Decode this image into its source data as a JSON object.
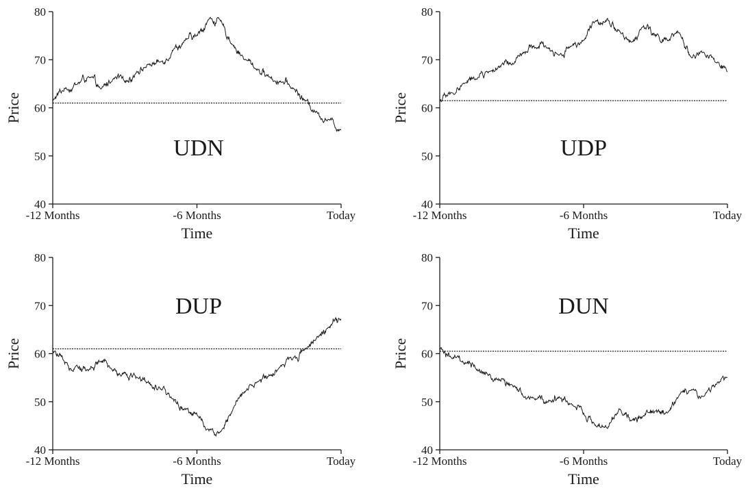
{
  "chart_data": [
    {
      "type": "line",
      "label": "UDN",
      "xlabel": "Time",
      "ylabel": "Price",
      "ylim": [
        40,
        80
      ],
      "yticks": [
        40,
        50,
        60,
        70,
        80
      ],
      "xticks": [
        {
          "value": -12,
          "label": "-12 Months"
        },
        {
          "value": -6,
          "label": "-6 Months"
        },
        {
          "value": 0,
          "label": "Today"
        }
      ],
      "xlim": [
        -12,
        0
      ],
      "reference_price": 61,
      "x": [
        -12,
        -11.5,
        -11,
        -10.5,
        -10,
        -9.5,
        -9,
        -8.5,
        -8,
        -7.5,
        -7,
        -6.5,
        -6,
        -5.5,
        -5,
        -4.5,
        -4,
        -3.5,
        -3,
        -2.5,
        -2,
        -1.5,
        -1,
        -0.5,
        0
      ],
      "y": [
        61.5,
        64.0,
        65.0,
        66.5,
        63.8,
        66.0,
        65.5,
        67.5,
        69.0,
        69.5,
        72.0,
        74.0,
        75.0,
        78.5,
        78.0,
        73.0,
        70.0,
        68.0,
        66.5,
        65.5,
        64.0,
        61.5,
        59.0,
        57.5,
        55.5
      ]
    },
    {
      "type": "line",
      "label": "UDP",
      "xlabel": "Time",
      "ylabel": "Price",
      "ylim": [
        40,
        80
      ],
      "yticks": [
        40,
        50,
        60,
        70,
        80
      ],
      "xticks": [
        {
          "value": -12,
          "label": "-12 Months"
        },
        {
          "value": -6,
          "label": "-6 Months"
        },
        {
          "value": 0,
          "label": "Today"
        }
      ],
      "xlim": [
        -12,
        0
      ],
      "reference_price": 61.5,
      "x": [
        -12,
        -11.5,
        -11,
        -10.5,
        -10,
        -9.5,
        -9,
        -8.5,
        -8,
        -7.5,
        -7,
        -6.5,
        -6,
        -5.5,
        -5,
        -4.5,
        -4,
        -3.5,
        -3,
        -2.5,
        -2,
        -1.5,
        -1,
        -0.5,
        0
      ],
      "y": [
        61.5,
        63.0,
        65.0,
        66.0,
        67.5,
        68.5,
        69.0,
        71.5,
        72.5,
        72.5,
        71.0,
        73.0,
        74.0,
        78.0,
        78.5,
        76.0,
        73.5,
        77.0,
        75.0,
        74.0,
        75.5,
        70.5,
        71.5,
        69.5,
        67.5
      ]
    },
    {
      "type": "line",
      "label": "DUP",
      "xlabel": "Time",
      "ylabel": "Price",
      "ylim": [
        40,
        80
      ],
      "yticks": [
        40,
        50,
        60,
        70,
        80
      ],
      "xticks": [
        {
          "value": -12,
          "label": "-12 Months"
        },
        {
          "value": -6,
          "label": "-6 Months"
        },
        {
          "value": 0,
          "label": "Today"
        }
      ],
      "xlim": [
        -12,
        0
      ],
      "reference_price": 61,
      "x": [
        -12,
        -11.5,
        -11,
        -10.5,
        -10,
        -9.5,
        -9,
        -8.5,
        -8,
        -7.5,
        -7,
        -6.5,
        -6,
        -5.5,
        -5,
        -4.5,
        -4,
        -3.5,
        -3,
        -2.5,
        -2,
        -1.5,
        -1,
        -0.5,
        0
      ],
      "y": [
        60.5,
        58.0,
        57.5,
        56.5,
        58.5,
        56.5,
        56.0,
        55.0,
        54.0,
        52.5,
        50.5,
        48.5,
        47.5,
        44.0,
        43.8,
        48.5,
        52.0,
        54.0,
        55.5,
        57.5,
        59.0,
        61.0,
        63.5,
        65.5,
        67.0
      ]
    },
    {
      "type": "line",
      "label": "DUN",
      "xlabel": "Time",
      "ylabel": "Price",
      "ylim": [
        40,
        80
      ],
      "yticks": [
        40,
        50,
        60,
        70,
        80
      ],
      "xticks": [
        {
          "value": -12,
          "label": "-12 Months"
        },
        {
          "value": -6,
          "label": "-6 Months"
        },
        {
          "value": 0,
          "label": "Today"
        }
      ],
      "xlim": [
        -12,
        0
      ],
      "reference_price": 60.5,
      "x": [
        -12,
        -11.5,
        -11,
        -10.5,
        -10,
        -9.5,
        -9,
        -8.5,
        -8,
        -7.5,
        -7,
        -6.5,
        -6,
        -5.5,
        -5,
        -4.5,
        -4,
        -3.5,
        -3,
        -2.5,
        -2,
        -1.5,
        -1,
        -0.5,
        0
      ],
      "y": [
        61.0,
        59.0,
        58.0,
        57.0,
        55.5,
        54.5,
        53.5,
        51.0,
        50.5,
        50.0,
        51.0,
        49.5,
        47.5,
        45.0,
        44.5,
        48.5,
        46.0,
        47.0,
        48.0,
        47.5,
        51.5,
        52.5,
        51.0,
        53.5,
        55.0
      ]
    }
  ]
}
